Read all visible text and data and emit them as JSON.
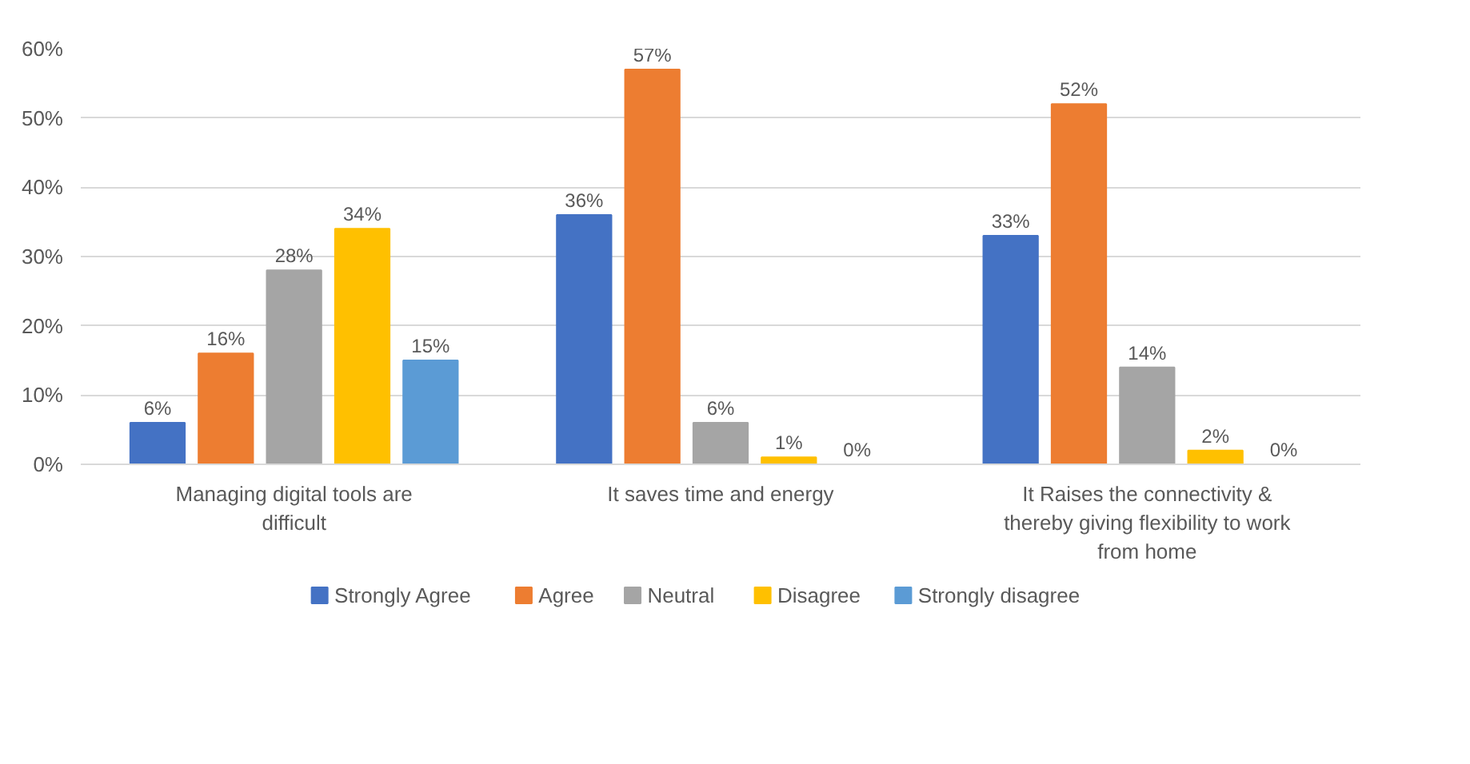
{
  "chart_data": {
    "type": "bar",
    "categories": [
      "Managing digital tools are difficult",
      "It saves time and energy",
      "It Raises the connectivity & thereby giving flexibility to work from home"
    ],
    "series": [
      {
        "name": "Strongly Agree",
        "color": "#4472c4",
        "values": [
          6,
          36,
          33
        ],
        "value_labels": [
          "6%",
          "36%",
          "33%"
        ]
      },
      {
        "name": "Agree",
        "color": "#ed7d31",
        "values": [
          16,
          57,
          52
        ],
        "value_labels": [
          "16%",
          "57%",
          "52%"
        ]
      },
      {
        "name": "Neutral",
        "color": "#a5a5a5",
        "values": [
          28,
          6,
          14
        ],
        "value_labels": [
          "28%",
          "6%",
          "14%"
        ]
      },
      {
        "name": "Disagree",
        "color": "#ffc000",
        "values": [
          34,
          1,
          2
        ],
        "value_labels": [
          "34%",
          "1%",
          "2%"
        ]
      },
      {
        "name": "Strongly disagree",
        "color": "#5b9bd5",
        "values": [
          15,
          0,
          0
        ],
        "value_labels": [
          "15%",
          "0%",
          "0%"
        ]
      }
    ],
    "ylim": [
      0,
      60
    ],
    "yticks": [
      {
        "value": 0,
        "label": "0%"
      },
      {
        "value": 10,
        "label": "10%"
      },
      {
        "value": 20,
        "label": "20%"
      },
      {
        "value": 30,
        "label": "30%"
      },
      {
        "value": 40,
        "label": "40%"
      },
      {
        "value": 50,
        "label": "50%"
      },
      {
        "value": 60,
        "label": "60%"
      }
    ],
    "grid": "y",
    "legend": "bottom"
  }
}
